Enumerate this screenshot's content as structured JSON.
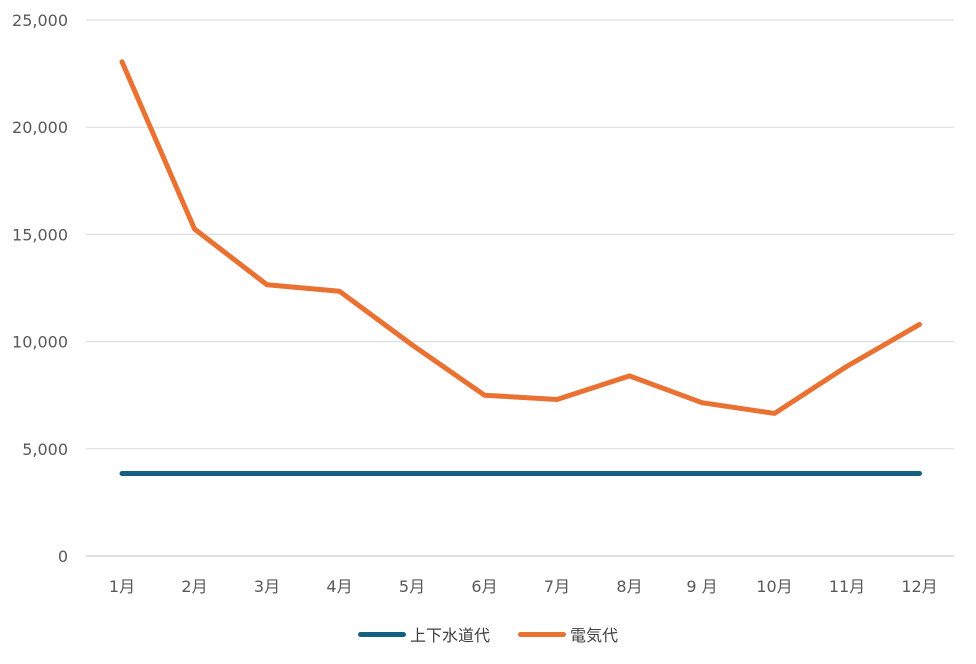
{
  "chart_data": {
    "type": "line",
    "title": "",
    "xlabel": "",
    "ylabel": "",
    "categories": [
      "1月",
      "2月",
      "3月",
      "4月",
      "5月",
      "6月",
      "7月",
      "8月",
      "9 月",
      "10月",
      "11月",
      "12月"
    ],
    "ylim": [
      0,
      25000
    ],
    "yticks": [
      0,
      5000,
      10000,
      15000,
      20000,
      25000
    ],
    "ytick_labels": [
      "0",
      "5,000",
      "10,000",
      "15,000",
      "20,000",
      "25,000"
    ],
    "grid": true,
    "legend_position": "bottom",
    "series": [
      {
        "name": "上下水道代",
        "color": "#156082",
        "values": [
          3850,
          3850,
          3850,
          3850,
          3850,
          3850,
          3850,
          3850,
          3850,
          3850,
          3850,
          3850
        ]
      },
      {
        "name": "電気代",
        "color": "#E97132",
        "values": [
          23050,
          15250,
          12650,
          12350,
          9850,
          7500,
          7300,
          8400,
          7150,
          6650,
          8850,
          10800
        ]
      }
    ]
  }
}
